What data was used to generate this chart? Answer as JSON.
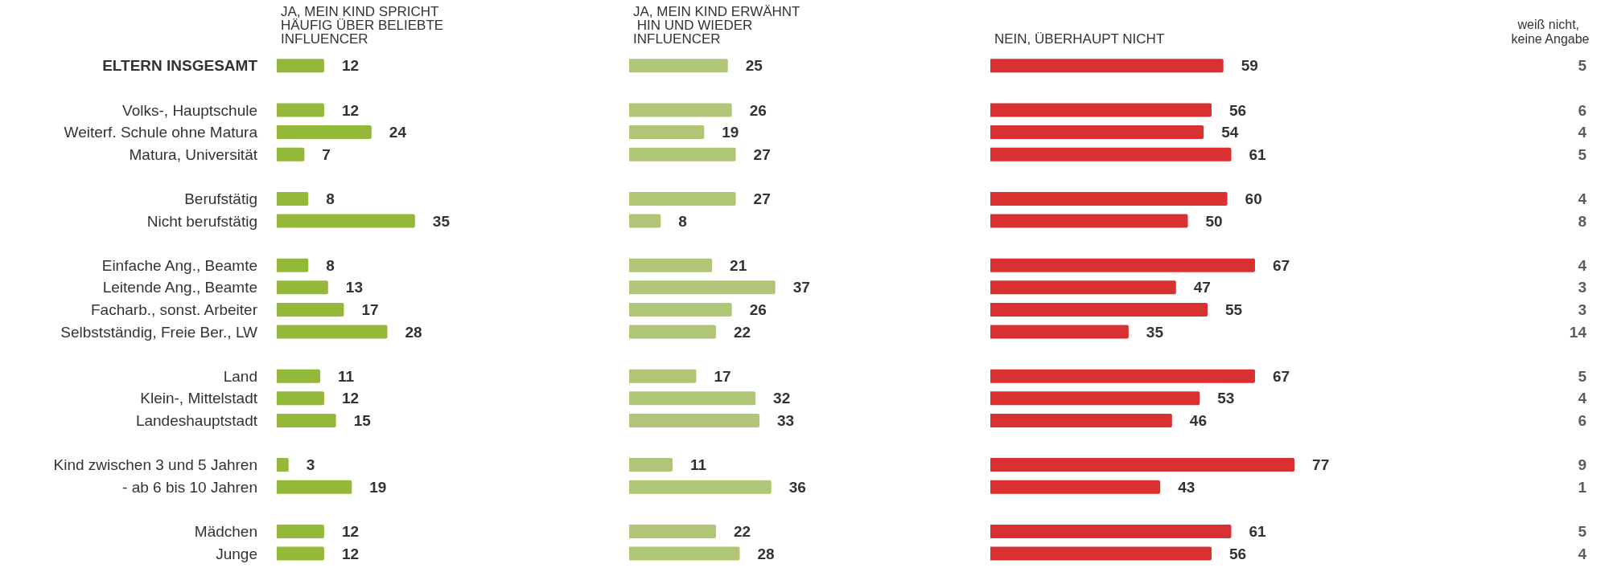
{
  "chart_data": [
    {
      "type": "bar",
      "orientation": "horizontal",
      "title": "JA, MEIN KIND SPRICHT HÄUFIG ÜBER BELIEBTE INFLUENCER",
      "color": "#94b93a",
      "data_labels": true,
      "tick_labels": "y",
      "categories": [
        "ELTERN INSGESAMT",
        null,
        "Volks-, Hauptschule",
        "Weiterf. Schule ohne Matura",
        "Matura, Universität",
        null,
        "Berufstätig",
        "Nicht berufstätig",
        null,
        "Einfache Ang., Beamte",
        "Leitende Ang., Beamte",
        "Facharb., sonst. Arbeiter",
        "Selbstständig, Freie Ber., LW",
        null,
        "Land",
        "Klein-, Mittelstadt",
        "Landeshauptstadt",
        null,
        "Kind zwischen 3 und 5 Jahren",
        "- ab 6 bis 10 Jahren",
        null,
        "Mädchen",
        "Junge"
      ],
      "values": [
        12,
        null,
        12,
        24,
        7,
        null,
        8,
        35,
        null,
        8,
        13,
        17,
        28,
        null,
        11,
        12,
        15,
        null,
        3,
        19,
        null,
        12,
        12
      ]
    },
    {
      "type": "bar",
      "orientation": "horizontal",
      "title": "JA, MEIN KIND ERWÄHNT HIN UND WIEDER INFLUENCER",
      "color": "#b1c576",
      "data_labels": true,
      "tick_labels": false,
      "values": [
        25,
        null,
        26,
        19,
        27,
        null,
        27,
        8,
        null,
        21,
        37,
        26,
        22,
        null,
        17,
        32,
        33,
        null,
        11,
        36,
        null,
        22,
        28
      ]
    },
    {
      "type": "bar",
      "orientation": "horizontal",
      "title": "NEIN, ÜBERHAUPT NICHT",
      "color": "#d93131",
      "data_labels": true,
      "tick_labels": false,
      "values": [
        59,
        null,
        56,
        54,
        61,
        null,
        60,
        50,
        null,
        67,
        47,
        55,
        35,
        null,
        67,
        53,
        46,
        null,
        77,
        43,
        null,
        61,
        56
      ]
    },
    {
      "type": "other",
      "title": "weiß nicht, keine Angabe",
      "data_labels": true,
      "values": [
        5,
        null,
        6,
        4,
        5,
        null,
        4,
        8,
        null,
        4,
        3,
        3,
        14,
        null,
        5,
        4,
        6,
        null,
        9,
        1,
        null,
        5,
        4
      ]
    }
  ]
}
